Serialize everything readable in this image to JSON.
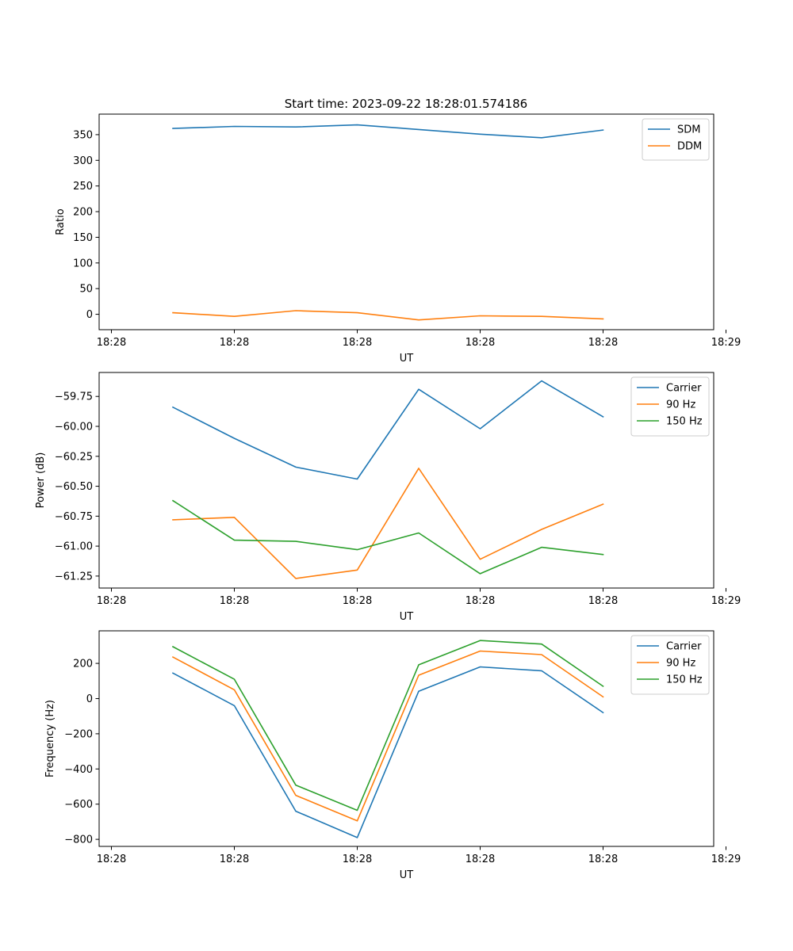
{
  "figure_title": "Start time: 2023-09-22 18:28:01.574186",
  "colors": {
    "blue": "#1f77b4",
    "orange": "#ff7f0e",
    "green": "#2ca02c"
  },
  "chart_data": [
    {
      "type": "line",
      "title": "Start time: 2023-09-22 18:28:01.574186",
      "xlabel": "UT",
      "ylabel": "Ratio",
      "x": [
        0.5,
        1.0,
        1.5,
        2.0,
        2.5,
        3.0,
        3.5,
        4.0
      ],
      "xlim": [
        -0.1,
        4.9
      ],
      "xticks": [
        0,
        1,
        2,
        3,
        4,
        5
      ],
      "xtick_labels": [
        "18:28",
        "18:28",
        "18:28",
        "18:28",
        "18:28",
        "18:29"
      ],
      "ylim": [
        -30,
        390
      ],
      "yticks": [
        0,
        50,
        100,
        150,
        200,
        250,
        300,
        350
      ],
      "ytick_labels": [
        "0",
        "50",
        "100",
        "150",
        "200",
        "250",
        "300",
        "350"
      ],
      "legend_position": "top-right",
      "series": [
        {
          "name": "SDM",
          "color": "#1f77b4",
          "values": [
            362,
            366,
            365,
            369,
            360,
            351,
            344,
            359
          ]
        },
        {
          "name": "DDM",
          "color": "#ff7f0e",
          "values": [
            3,
            -4,
            7,
            3,
            -11,
            -3,
            -4,
            -9
          ]
        }
      ]
    },
    {
      "type": "line",
      "title": "",
      "xlabel": "UT",
      "ylabel": "Power (dB)",
      "x": [
        0.5,
        1.0,
        1.5,
        2.0,
        2.5,
        3.0,
        3.5,
        4.0
      ],
      "xlim": [
        -0.1,
        4.9
      ],
      "xticks": [
        0,
        1,
        2,
        3,
        4,
        5
      ],
      "xtick_labels": [
        "18:28",
        "18:28",
        "18:28",
        "18:28",
        "18:28",
        "18:29"
      ],
      "ylim": [
        -61.35,
        -59.55
      ],
      "yticks": [
        -59.75,
        -60.0,
        -60.25,
        -60.5,
        -60.75,
        -61.0,
        -61.25
      ],
      "ytick_labels": [
        "−59.75",
        "−60.00",
        "−60.25",
        "−60.50",
        "−60.75",
        "−61.00",
        "−61.25"
      ],
      "legend_position": "top-right",
      "series": [
        {
          "name": "Carrier",
          "color": "#1f77b4",
          "values": [
            -59.84,
            -60.1,
            -60.34,
            -60.44,
            -59.69,
            -60.02,
            -59.62,
            -59.92
          ]
        },
        {
          "name": "90 Hz",
          "color": "#ff7f0e",
          "values": [
            -60.78,
            -60.76,
            -61.27,
            -61.2,
            -60.35,
            -61.11,
            -60.86,
            -60.65
          ]
        },
        {
          "name": "150 Hz",
          "color": "#2ca02c",
          "values": [
            -60.62,
            -60.95,
            -60.96,
            -61.03,
            -60.89,
            -61.23,
            -61.01,
            -61.07
          ]
        }
      ]
    },
    {
      "type": "line",
      "title": "",
      "xlabel": "UT",
      "ylabel": "Frequency (Hz)",
      "x": [
        0.5,
        1.0,
        1.5,
        2.0,
        2.5,
        3.0,
        3.5,
        4.0
      ],
      "xlim": [
        -0.1,
        4.9
      ],
      "xticks": [
        0,
        1,
        2,
        3,
        4,
        5
      ],
      "xtick_labels": [
        "18:28",
        "18:28",
        "18:28",
        "18:28",
        "18:28",
        "18:29"
      ],
      "ylim": [
        -840,
        385
      ],
      "yticks": [
        200,
        0,
        -200,
        -400,
        -600,
        -800
      ],
      "ytick_labels": [
        "200",
        "0",
        "−200",
        "−400",
        "−600",
        "−800"
      ],
      "legend_position": "top-right",
      "series": [
        {
          "name": "Carrier",
          "color": "#1f77b4",
          "values": [
            145,
            -40,
            -640,
            -790,
            42,
            180,
            158,
            -80
          ]
        },
        {
          "name": "90 Hz",
          "color": "#ff7f0e",
          "values": [
            236,
            50,
            -550,
            -695,
            133,
            270,
            250,
            10
          ]
        },
        {
          "name": "150 Hz",
          "color": "#2ca02c",
          "values": [
            295,
            110,
            -492,
            -635,
            192,
            330,
            310,
            70
          ]
        }
      ]
    }
  ]
}
